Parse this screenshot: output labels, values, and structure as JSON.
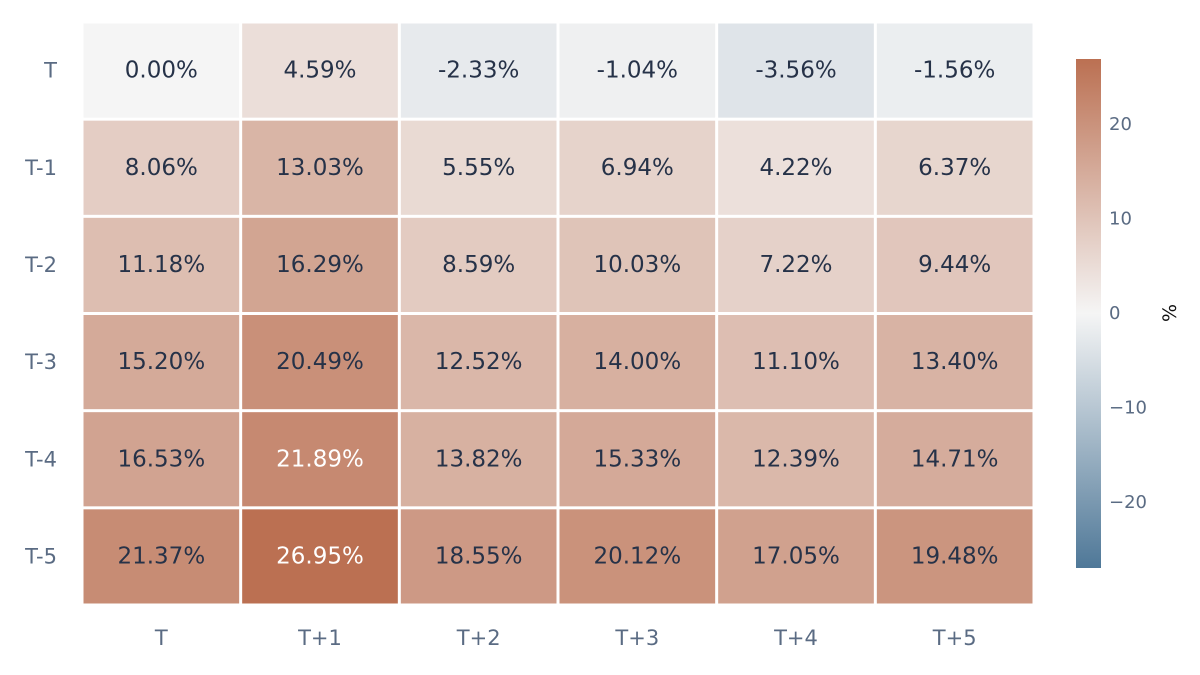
{
  "chart_data": {
    "type": "heatmap",
    "title": "",
    "xlabel": "",
    "ylabel": "",
    "x_categories": [
      "T",
      "T+1",
      "T+2",
      "T+3",
      "T+4",
      "T+5"
    ],
    "y_categories": [
      "T",
      "T-1",
      "T-2",
      "T-3",
      "T-4",
      "T-5"
    ],
    "values": [
      [
        0.0,
        4.59,
        -2.33,
        -1.04,
        -3.56,
        -1.56
      ],
      [
        8.06,
        13.03,
        5.55,
        6.94,
        4.22,
        6.37
      ],
      [
        11.18,
        16.29,
        8.59,
        10.03,
        7.22,
        9.44
      ],
      [
        15.2,
        20.49,
        12.52,
        14.0,
        11.1,
        13.4
      ],
      [
        16.53,
        21.89,
        13.82,
        15.33,
        12.39,
        14.71
      ],
      [
        21.37,
        26.95,
        18.55,
        20.12,
        17.05,
        19.48
      ]
    ],
    "cell_labels": [
      [
        "0.00%",
        "4.59%",
        "-2.33%",
        "-1.04%",
        "-3.56%",
        "-1.56%"
      ],
      [
        "8.06%",
        "13.03%",
        "5.55%",
        "6.94%",
        "4.22%",
        "6.37%"
      ],
      [
        "11.18%",
        "16.29%",
        "8.59%",
        "10.03%",
        "7.22%",
        "9.44%"
      ],
      [
        "15.20%",
        "20.49%",
        "12.52%",
        "14.00%",
        "11.10%",
        "13.40%"
      ],
      [
        "16.53%",
        "21.89%",
        "13.82%",
        "15.33%",
        "12.39%",
        "14.71%"
      ],
      [
        "21.37%",
        "26.95%",
        "18.55%",
        "20.12%",
        "17.05%",
        "19.48%"
      ]
    ],
    "colorscale": {
      "min": -26.95,
      "max": 26.95,
      "low_color": "#4f7898",
      "mid_color": "#f5f5f5",
      "high_color": "#bb7052",
      "title": "%",
      "ticks": [
        20,
        10,
        0,
        -10,
        -20
      ],
      "tick_labels": [
        "20",
        "10",
        "0",
        "−10",
        "−20"
      ]
    },
    "legend_placement": "right",
    "grid": false
  },
  "colors": {
    "text_dark": "#263248",
    "text_light": "#ffffff",
    "tick_text": "#5a6b83",
    "cell_border": "#ffffff"
  }
}
